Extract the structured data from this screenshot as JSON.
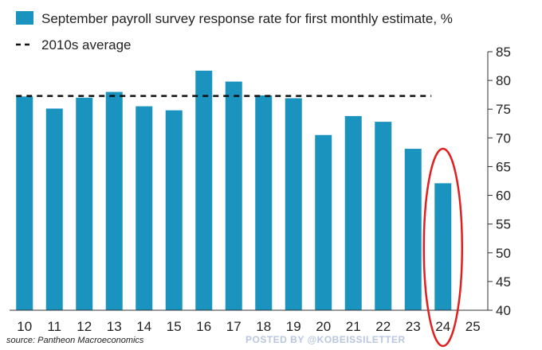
{
  "chart_data": {
    "type": "bar",
    "categories": [
      "10",
      "11",
      "12",
      "13",
      "14",
      "15",
      "16",
      "17",
      "18",
      "19",
      "20",
      "21",
      "22",
      "23",
      "24",
      "25"
    ],
    "values": [
      77.2,
      75.1,
      77.0,
      78.0,
      75.5,
      74.8,
      81.7,
      79.8,
      77.4,
      76.9,
      70.5,
      73.8,
      72.8,
      68.1,
      62.1,
      null
    ],
    "series_name": "September payroll survey response rate for first monthly estimate, %",
    "reference_line": {
      "name": "2010s average",
      "value": 77.3,
      "style": "dashed"
    },
    "ylim": [
      40,
      85
    ],
    "yticks": [
      40,
      45,
      50,
      55,
      60,
      65,
      70,
      75,
      80,
      85
    ],
    "y_axis_position": "right",
    "grid": false,
    "legend_position": "top-left",
    "highlight": {
      "category": "24",
      "shape": "ellipse",
      "color": "#e02020"
    },
    "bar_color": "#1b93bf"
  },
  "source": "source: Pantheon Macroeconomics",
  "credit": "POSTED BY @KOBEISSILETTER"
}
